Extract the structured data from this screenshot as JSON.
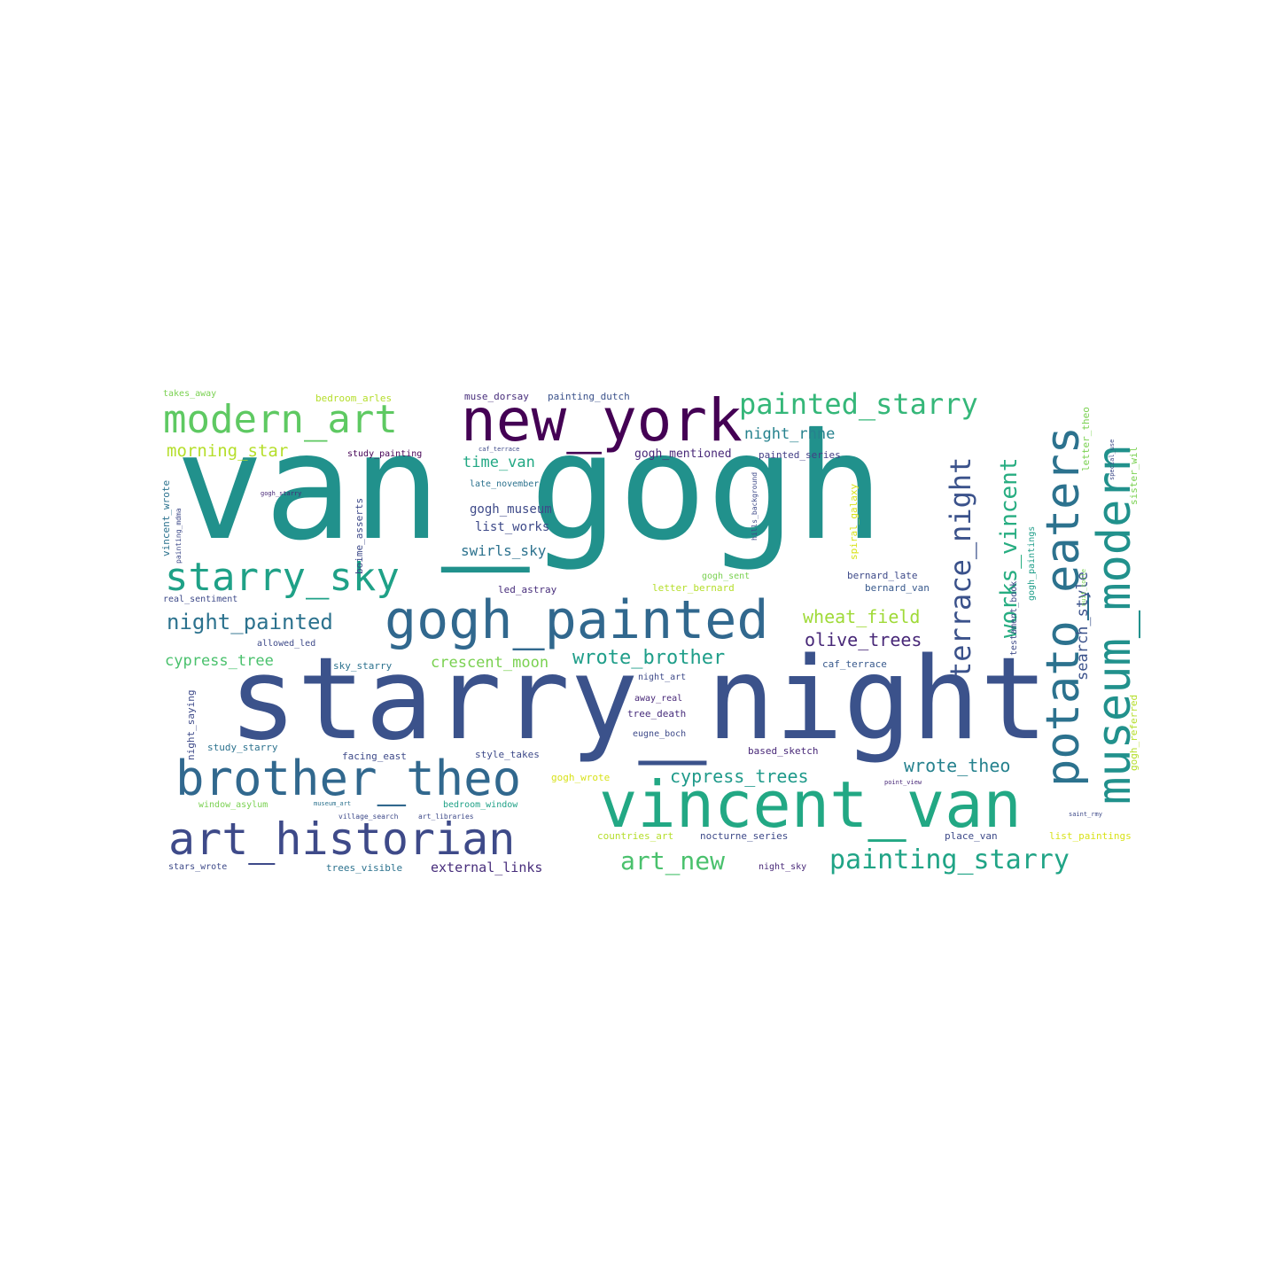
{
  "wordcloud": {
    "words": [
      {
        "text": "van_gogh",
        "color": "#21918c"
      },
      {
        "text": "starry_night",
        "color": "#3b528b"
      },
      {
        "text": "vincent_van",
        "color": "#22a884"
      },
      {
        "text": "gogh_painted",
        "color": "#31688e"
      },
      {
        "text": "new_york",
        "color": "#440154"
      },
      {
        "text": "art_historian",
        "color": "#3e4a89"
      },
      {
        "text": "brother_theo",
        "color": "#31688e"
      },
      {
        "text": "modern_art",
        "color": "#5ec962"
      },
      {
        "text": "potato_eaters",
        "color": "#2c728e"
      },
      {
        "text": "museum_modern",
        "color": "#21918c"
      },
      {
        "text": "starry_sky",
        "color": "#1fa187"
      },
      {
        "text": "painted_starry",
        "color": "#35b779"
      },
      {
        "text": "terrace_night",
        "color": "#3b528b"
      },
      {
        "text": "works_vincent",
        "color": "#27ad81"
      },
      {
        "text": "painting_starry",
        "color": "#20a486"
      },
      {
        "text": "art_new",
        "color": "#4ac16d"
      },
      {
        "text": "night_painted",
        "color": "#2c728e"
      },
      {
        "text": "wrote_brother",
        "color": "#1f9e89"
      },
      {
        "text": "wheat_field",
        "color": "#a0da39"
      },
      {
        "text": "olive_trees",
        "color": "#482878"
      },
      {
        "text": "wrote_theo",
        "color": "#26828e"
      },
      {
        "text": "cypress_trees",
        "color": "#1f9a8a"
      },
      {
        "text": "morning_star",
        "color": "#b5de2b"
      },
      {
        "text": "night_rhne",
        "color": "#26828e"
      },
      {
        "text": "time_van",
        "color": "#22a884"
      },
      {
        "text": "gogh_museum",
        "color": "#3e4a89"
      },
      {
        "text": "list_works",
        "color": "#3e4a89"
      },
      {
        "text": "swirls_sky",
        "color": "#2c728e"
      },
      {
        "text": "cypress_tree",
        "color": "#4ac16d"
      },
      {
        "text": "crescent_moon",
        "color": "#7ad151"
      },
      {
        "text": "gogh_mentioned",
        "color": "#482878"
      },
      {
        "text": "search_style",
        "color": "#3b528b"
      },
      {
        "text": "external_links",
        "color": "#472d7b"
      },
      {
        "text": "painted_series",
        "color": "#433e85"
      },
      {
        "text": "takes_away",
        "color": "#7ad151"
      },
      {
        "text": "bedroom_arles",
        "color": "#b5de2b"
      },
      {
        "text": "muse_dorsay",
        "color": "#472d7b"
      },
      {
        "text": "painting_dutch",
        "color": "#3b528b"
      },
      {
        "text": "study_painting",
        "color": "#440154"
      },
      {
        "text": "caf_terrace",
        "color": "#38598c"
      },
      {
        "text": "late_november",
        "color": "#2c728e"
      },
      {
        "text": "boime_asserts",
        "color": "#3e4a89"
      },
      {
        "text": "spiral_galaxy",
        "color": "#d8e219"
      },
      {
        "text": "gogh_sent",
        "color": "#7ad151"
      },
      {
        "text": "letter_bernard",
        "color": "#b5de2b"
      },
      {
        "text": "bernard_late",
        "color": "#3e4a89"
      },
      {
        "text": "bernard_van",
        "color": "#38598c"
      },
      {
        "text": "led_astray",
        "color": "#472d7b"
      },
      {
        "text": "real_sentiment",
        "color": "#3e4a89"
      },
      {
        "text": "allowed_led",
        "color": "#3e4a89"
      },
      {
        "text": "sky_starry",
        "color": "#2c728e"
      },
      {
        "text": "night_art",
        "color": "#3e4a89"
      },
      {
        "text": "away_real",
        "color": "#482878"
      },
      {
        "text": "tree_death",
        "color": "#472d7b"
      },
      {
        "text": "eugne_boch",
        "color": "#3e4a89"
      },
      {
        "text": "study_starry",
        "color": "#2c728e"
      },
      {
        "text": "facing_east",
        "color": "#3e4a89"
      },
      {
        "text": "style_takes",
        "color": "#3e4a89"
      },
      {
        "text": "based_sketch",
        "color": "#482878"
      },
      {
        "text": "gogh_wrote",
        "color": "#d8e219"
      },
      {
        "text": "window_asylum",
        "color": "#7ad151"
      },
      {
        "text": "bedroom_window",
        "color": "#1fa187"
      },
      {
        "text": "countries_art",
        "color": "#b5de2b"
      },
      {
        "text": "nocturne_series",
        "color": "#3e4a89"
      },
      {
        "text": "place_van",
        "color": "#3e4a89"
      },
      {
        "text": "list_paintings",
        "color": "#d8e219"
      },
      {
        "text": "stars_wrote",
        "color": "#3e4a89"
      },
      {
        "text": "trees_visible",
        "color": "#2c728e"
      },
      {
        "text": "night_sky",
        "color": "#482878"
      },
      {
        "text": "vincent_wrote",
        "color": "#2c728e"
      },
      {
        "text": "night_saying",
        "color": "#3e4a89"
      },
      {
        "text": "letter_theo",
        "color": "#7ad151"
      },
      {
        "text": "sister_wil",
        "color": "#7ad151"
      },
      {
        "text": "gogh_paintings",
        "color": "#1f9e89"
      },
      {
        "text": "testament_book",
        "color": "#3e4a89"
      },
      {
        "text": "gogh_referred",
        "color": "#b5de2b"
      },
      {
        "text": "gogh_starry",
        "color": "#482878"
      },
      {
        "text": "painting_mdma",
        "color": "#3e4a89"
      },
      {
        "text": "hills_background",
        "color": "#3e4a89"
      },
      {
        "text": "special_use",
        "color": "#3e4a89"
      },
      {
        "text": "caf_terrace",
        "color": "#3e4a89"
      },
      {
        "text": "museum_art",
        "color": "#2c728e"
      },
      {
        "text": "village_search",
        "color": "#3e4a89"
      },
      {
        "text": "art_libraries",
        "color": "#3e4a89"
      },
      {
        "text": "point_view",
        "color": "#482878"
      },
      {
        "text": "saint_rmy",
        "color": "#3e4a89"
      },
      {
        "text": "nuit_toile",
        "color": "#7ad151"
      },
      {
        "text": "vincent_van",
        "color": "#1f9e89"
      }
    ]
  }
}
